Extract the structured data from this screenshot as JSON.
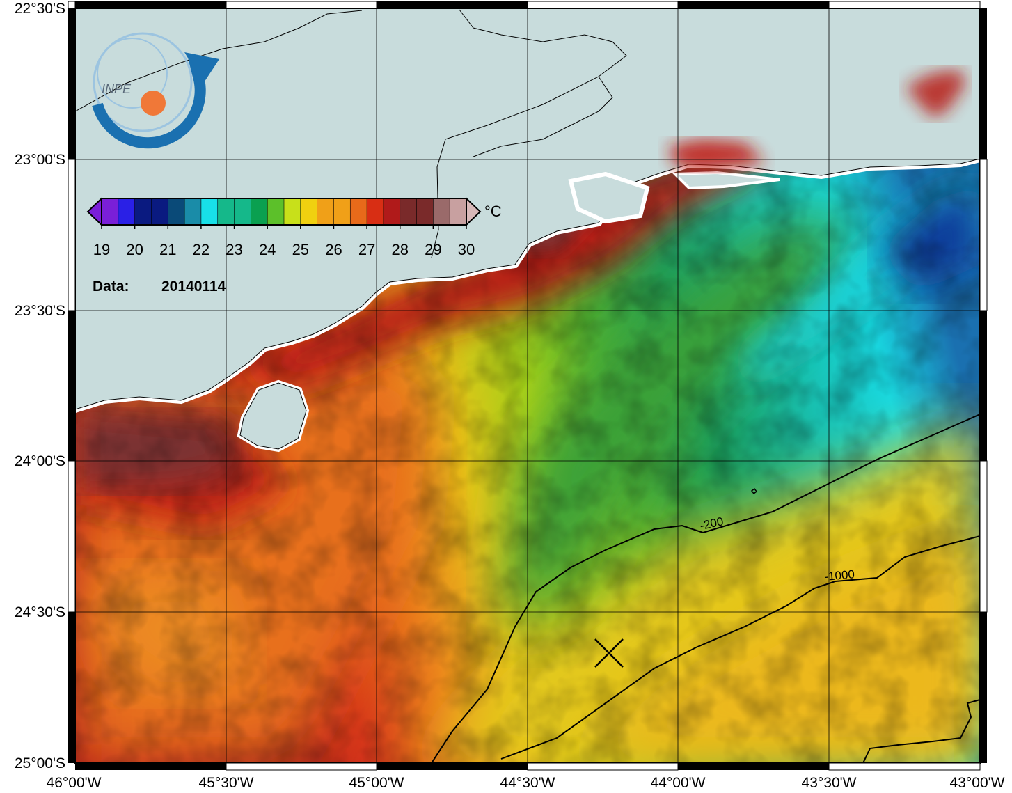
{
  "map": {
    "lon_labels": [
      "46°00'W",
      "45°30'W",
      "45°00'W",
      "44°30'W",
      "44°00'W",
      "43°30'W",
      "43°00'W"
    ],
    "lat_labels": [
      "22°30'S",
      "23°00'S",
      "23°30'S",
      "24°00'S",
      "24°30'S",
      "25°00'S"
    ],
    "lon_range": [
      -46.0,
      -43.0
    ],
    "lat_range": [
      -25.0,
      -22.5
    ],
    "grid": true
  },
  "colorbar": {
    "ticks": [
      "19",
      "20",
      "21",
      "22",
      "23",
      "24",
      "25",
      "26",
      "27",
      "28",
      "29",
      "30"
    ],
    "unit": "°C",
    "range": [
      19,
      30
    ],
    "colors": [
      "#7a1fd8",
      "#2a20e6",
      "#0a1a80",
      "#0a4a78",
      "#1a8ca8",
      "#18e0e8",
      "#15b88a",
      "#0aa050",
      "#5cc02a",
      "#c8e01a",
      "#f0d010",
      "#f0a018",
      "#e86a1a",
      "#d82e14",
      "#b01a1a",
      "#7a2a2a",
      "#9a6a6a",
      "#c8a0a0"
    ]
  },
  "date": {
    "label": "Data:",
    "value": "20140114"
  },
  "logo": {
    "text": "INPE",
    "colors": {
      "blue": "#1a70b0",
      "orange": "#f07838"
    }
  },
  "contours": [
    {
      "label": "-200"
    },
    {
      "label": "-1000"
    }
  ],
  "marker": {
    "symbol": "x-marker",
    "lon": -44.21,
    "lat": -24.64
  },
  "colors": {
    "land": "#c8dcdc",
    "frame": "#000000",
    "warm": "#b81c14",
    "hot": "#7a3232",
    "green": "#40a040",
    "cyan": "#18d8e0",
    "yellow": "#e6d018"
  }
}
